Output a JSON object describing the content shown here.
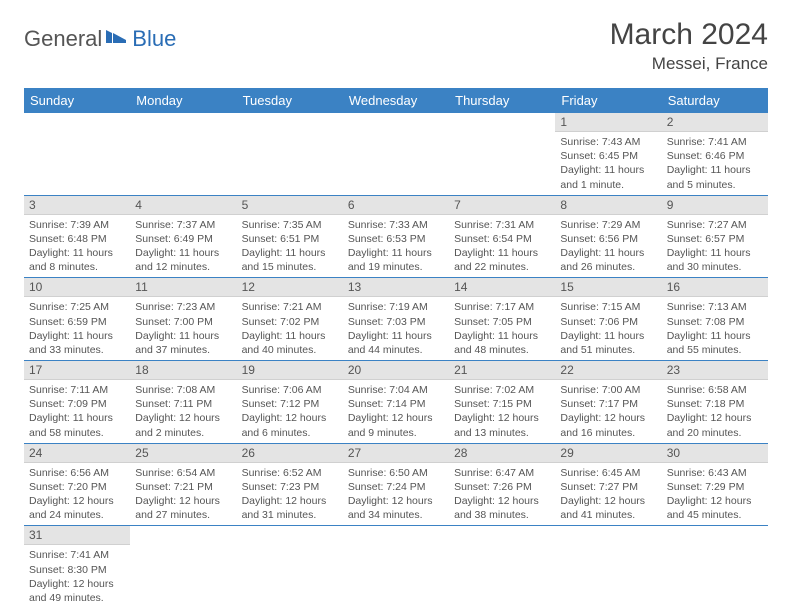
{
  "logo": {
    "part1": "General",
    "part2": "Blue"
  },
  "title": "March 2024",
  "location": "Messei, France",
  "colors": {
    "header_bg": "#3b82c4",
    "header_text": "#ffffff",
    "daynum_bg": "#e4e4e4",
    "row_border": "#3b82c4",
    "text": "#555555",
    "logo_blue": "#2a6db5"
  },
  "weekdays": [
    "Sunday",
    "Monday",
    "Tuesday",
    "Wednesday",
    "Thursday",
    "Friday",
    "Saturday"
  ],
  "weeks": [
    [
      {
        "day": "",
        "sunrise": "",
        "sunset": "",
        "daylight": ""
      },
      {
        "day": "",
        "sunrise": "",
        "sunset": "",
        "daylight": ""
      },
      {
        "day": "",
        "sunrise": "",
        "sunset": "",
        "daylight": ""
      },
      {
        "day": "",
        "sunrise": "",
        "sunset": "",
        "daylight": ""
      },
      {
        "day": "",
        "sunrise": "",
        "sunset": "",
        "daylight": ""
      },
      {
        "day": "1",
        "sunrise": "Sunrise: 7:43 AM",
        "sunset": "Sunset: 6:45 PM",
        "daylight": "Daylight: 11 hours and 1 minute."
      },
      {
        "day": "2",
        "sunrise": "Sunrise: 7:41 AM",
        "sunset": "Sunset: 6:46 PM",
        "daylight": "Daylight: 11 hours and 5 minutes."
      }
    ],
    [
      {
        "day": "3",
        "sunrise": "Sunrise: 7:39 AM",
        "sunset": "Sunset: 6:48 PM",
        "daylight": "Daylight: 11 hours and 8 minutes."
      },
      {
        "day": "4",
        "sunrise": "Sunrise: 7:37 AM",
        "sunset": "Sunset: 6:49 PM",
        "daylight": "Daylight: 11 hours and 12 minutes."
      },
      {
        "day": "5",
        "sunrise": "Sunrise: 7:35 AM",
        "sunset": "Sunset: 6:51 PM",
        "daylight": "Daylight: 11 hours and 15 minutes."
      },
      {
        "day": "6",
        "sunrise": "Sunrise: 7:33 AM",
        "sunset": "Sunset: 6:53 PM",
        "daylight": "Daylight: 11 hours and 19 minutes."
      },
      {
        "day": "7",
        "sunrise": "Sunrise: 7:31 AM",
        "sunset": "Sunset: 6:54 PM",
        "daylight": "Daylight: 11 hours and 22 minutes."
      },
      {
        "day": "8",
        "sunrise": "Sunrise: 7:29 AM",
        "sunset": "Sunset: 6:56 PM",
        "daylight": "Daylight: 11 hours and 26 minutes."
      },
      {
        "day": "9",
        "sunrise": "Sunrise: 7:27 AM",
        "sunset": "Sunset: 6:57 PM",
        "daylight": "Daylight: 11 hours and 30 minutes."
      }
    ],
    [
      {
        "day": "10",
        "sunrise": "Sunrise: 7:25 AM",
        "sunset": "Sunset: 6:59 PM",
        "daylight": "Daylight: 11 hours and 33 minutes."
      },
      {
        "day": "11",
        "sunrise": "Sunrise: 7:23 AM",
        "sunset": "Sunset: 7:00 PM",
        "daylight": "Daylight: 11 hours and 37 minutes."
      },
      {
        "day": "12",
        "sunrise": "Sunrise: 7:21 AM",
        "sunset": "Sunset: 7:02 PM",
        "daylight": "Daylight: 11 hours and 40 minutes."
      },
      {
        "day": "13",
        "sunrise": "Sunrise: 7:19 AM",
        "sunset": "Sunset: 7:03 PM",
        "daylight": "Daylight: 11 hours and 44 minutes."
      },
      {
        "day": "14",
        "sunrise": "Sunrise: 7:17 AM",
        "sunset": "Sunset: 7:05 PM",
        "daylight": "Daylight: 11 hours and 48 minutes."
      },
      {
        "day": "15",
        "sunrise": "Sunrise: 7:15 AM",
        "sunset": "Sunset: 7:06 PM",
        "daylight": "Daylight: 11 hours and 51 minutes."
      },
      {
        "day": "16",
        "sunrise": "Sunrise: 7:13 AM",
        "sunset": "Sunset: 7:08 PM",
        "daylight": "Daylight: 11 hours and 55 minutes."
      }
    ],
    [
      {
        "day": "17",
        "sunrise": "Sunrise: 7:11 AM",
        "sunset": "Sunset: 7:09 PM",
        "daylight": "Daylight: 11 hours and 58 minutes."
      },
      {
        "day": "18",
        "sunrise": "Sunrise: 7:08 AM",
        "sunset": "Sunset: 7:11 PM",
        "daylight": "Daylight: 12 hours and 2 minutes."
      },
      {
        "day": "19",
        "sunrise": "Sunrise: 7:06 AM",
        "sunset": "Sunset: 7:12 PM",
        "daylight": "Daylight: 12 hours and 6 minutes."
      },
      {
        "day": "20",
        "sunrise": "Sunrise: 7:04 AM",
        "sunset": "Sunset: 7:14 PM",
        "daylight": "Daylight: 12 hours and 9 minutes."
      },
      {
        "day": "21",
        "sunrise": "Sunrise: 7:02 AM",
        "sunset": "Sunset: 7:15 PM",
        "daylight": "Daylight: 12 hours and 13 minutes."
      },
      {
        "day": "22",
        "sunrise": "Sunrise: 7:00 AM",
        "sunset": "Sunset: 7:17 PM",
        "daylight": "Daylight: 12 hours and 16 minutes."
      },
      {
        "day": "23",
        "sunrise": "Sunrise: 6:58 AM",
        "sunset": "Sunset: 7:18 PM",
        "daylight": "Daylight: 12 hours and 20 minutes."
      }
    ],
    [
      {
        "day": "24",
        "sunrise": "Sunrise: 6:56 AM",
        "sunset": "Sunset: 7:20 PM",
        "daylight": "Daylight: 12 hours and 24 minutes."
      },
      {
        "day": "25",
        "sunrise": "Sunrise: 6:54 AM",
        "sunset": "Sunset: 7:21 PM",
        "daylight": "Daylight: 12 hours and 27 minutes."
      },
      {
        "day": "26",
        "sunrise": "Sunrise: 6:52 AM",
        "sunset": "Sunset: 7:23 PM",
        "daylight": "Daylight: 12 hours and 31 minutes."
      },
      {
        "day": "27",
        "sunrise": "Sunrise: 6:50 AM",
        "sunset": "Sunset: 7:24 PM",
        "daylight": "Daylight: 12 hours and 34 minutes."
      },
      {
        "day": "28",
        "sunrise": "Sunrise: 6:47 AM",
        "sunset": "Sunset: 7:26 PM",
        "daylight": "Daylight: 12 hours and 38 minutes."
      },
      {
        "day": "29",
        "sunrise": "Sunrise: 6:45 AM",
        "sunset": "Sunset: 7:27 PM",
        "daylight": "Daylight: 12 hours and 41 minutes."
      },
      {
        "day": "30",
        "sunrise": "Sunrise: 6:43 AM",
        "sunset": "Sunset: 7:29 PM",
        "daylight": "Daylight: 12 hours and 45 minutes."
      }
    ],
    [
      {
        "day": "31",
        "sunrise": "Sunrise: 7:41 AM",
        "sunset": "Sunset: 8:30 PM",
        "daylight": "Daylight: 12 hours and 49 minutes."
      },
      {
        "day": "",
        "sunrise": "",
        "sunset": "",
        "daylight": ""
      },
      {
        "day": "",
        "sunrise": "",
        "sunset": "",
        "daylight": ""
      },
      {
        "day": "",
        "sunrise": "",
        "sunset": "",
        "daylight": ""
      },
      {
        "day": "",
        "sunrise": "",
        "sunset": "",
        "daylight": ""
      },
      {
        "day": "",
        "sunrise": "",
        "sunset": "",
        "daylight": ""
      },
      {
        "day": "",
        "sunrise": "",
        "sunset": "",
        "daylight": ""
      }
    ]
  ]
}
